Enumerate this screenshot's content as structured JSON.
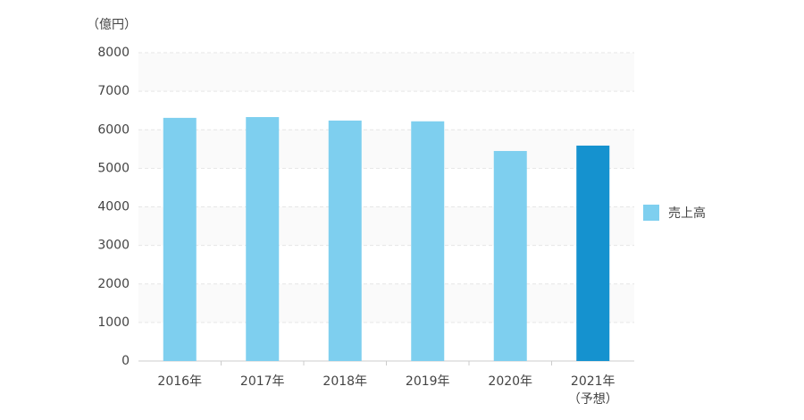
{
  "chart_data": {
    "type": "bar",
    "y_unit": "（億円）",
    "categories": [
      "2016年",
      "2017年",
      "2018年",
      "2019年",
      "2020年",
      [
        "2021年",
        "（予想）"
      ]
    ],
    "series": [
      {
        "name": "売上高",
        "color": "#7ecfef",
        "colors": [
          "#7ecfef",
          "#7ecfef",
          "#7ecfef",
          "#7ecfef",
          "#7ecfef",
          "#1592cf"
        ],
        "values": [
          6310,
          6330,
          6240,
          6220,
          5450,
          5590
        ]
      }
    ],
    "ylim": [
      0,
      8000
    ],
    "yticks": [
      0,
      1000,
      2000,
      3000,
      4000,
      5000,
      6000,
      7000,
      8000
    ],
    "grid": true,
    "legend": "right"
  }
}
